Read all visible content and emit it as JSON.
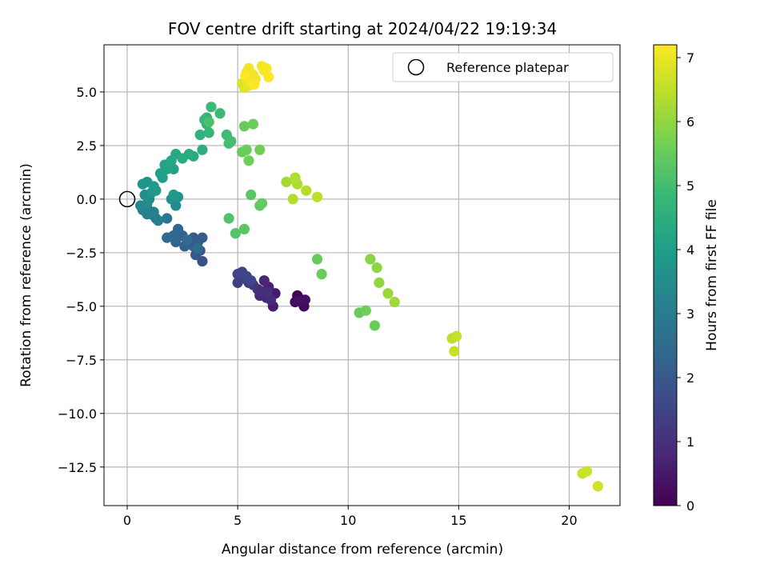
{
  "chart_data": {
    "type": "scatter",
    "title": "FOV centre drift starting at 2024/04/22 19:19:34",
    "xlabel": "Angular distance from reference (arcmin)",
    "ylabel": "Rotation from reference (arcmin)",
    "xlim": [
      -1.05,
      22.3
    ],
    "ylim": [
      -14.3,
      7.2
    ],
    "x_ticks": [
      0,
      5,
      10,
      15,
      20
    ],
    "x_tick_labels": [
      "0",
      "5",
      "10",
      "15",
      "20"
    ],
    "y_ticks": [
      5.0,
      2.5,
      0.0,
      -2.5,
      -5.0,
      -7.5,
      -10.0,
      -12.5
    ],
    "y_tick_labels": [
      "5.0",
      "2.5",
      "0.0",
      "−2.5",
      "−5.0",
      "−7.5",
      "−10.0",
      "−12.5"
    ],
    "grid": true,
    "legend": {
      "position": "top-right",
      "entries": [
        {
          "label": "Reference platepar",
          "marker": "open-circle",
          "color": "#000000"
        }
      ]
    },
    "reference_point": {
      "x": 0.0,
      "y": 0.0
    },
    "colorbar": {
      "label": "Hours from first FF file",
      "min": 0,
      "max": 7.2,
      "ticks": [
        0,
        1,
        2,
        3,
        4,
        5,
        6,
        7
      ],
      "tick_labels": [
        "0",
        "1",
        "2",
        "3",
        "4",
        "5",
        "6",
        "7"
      ],
      "colormap": "viridis",
      "stops": [
        "#440154",
        "#482878",
        "#3e4989",
        "#31688e",
        "#26828e",
        "#1f9e89",
        "#35b779",
        "#6ece58",
        "#b5de2b",
        "#fde725"
      ]
    },
    "points": [
      {
        "x": 7.7,
        "y": -4.5,
        "h": 0.05
      },
      {
        "x": 7.9,
        "y": -4.7,
        "h": 0.1
      },
      {
        "x": 8.0,
        "y": -5.0,
        "h": 0.15
      },
      {
        "x": 7.6,
        "y": -4.8,
        "h": 0.2
      },
      {
        "x": 8.05,
        "y": -4.7,
        "h": 0.25
      },
      {
        "x": 7.75,
        "y": -4.75,
        "h": 0.3
      },
      {
        "x": 6.7,
        "y": -4.4,
        "h": 0.5
      },
      {
        "x": 6.6,
        "y": -5.0,
        "h": 0.6
      },
      {
        "x": 6.4,
        "y": -4.1,
        "h": 0.65
      },
      {
        "x": 6.3,
        "y": -4.6,
        "h": 0.7
      },
      {
        "x": 6.2,
        "y": -3.8,
        "h": 0.75
      },
      {
        "x": 6.0,
        "y": -4.5,
        "h": 0.8
      },
      {
        "x": 6.5,
        "y": -4.7,
        "h": 0.85
      },
      {
        "x": 5.9,
        "y": -4.2,
        "h": 0.9
      },
      {
        "x": 6.1,
        "y": -4.3,
        "h": 0.95
      },
      {
        "x": 6.35,
        "y": -4.35,
        "h": 1.0
      },
      {
        "x": 5.7,
        "y": -4.0,
        "h": 1.1
      },
      {
        "x": 5.5,
        "y": -3.9,
        "h": 1.2
      },
      {
        "x": 5.3,
        "y": -3.7,
        "h": 1.3
      },
      {
        "x": 5.0,
        "y": -3.9,
        "h": 1.35
      },
      {
        "x": 5.2,
        "y": -3.4,
        "h": 1.4
      },
      {
        "x": 5.0,
        "y": -3.5,
        "h": 1.45
      },
      {
        "x": 5.4,
        "y": -3.6,
        "h": 1.5
      },
      {
        "x": 5.6,
        "y": -3.8,
        "h": 1.55
      },
      {
        "x": 3.4,
        "y": -2.9,
        "h": 1.8
      },
      {
        "x": 3.3,
        "y": -2.4,
        "h": 1.9
      },
      {
        "x": 3.1,
        "y": -2.6,
        "h": 1.95
      },
      {
        "x": 3.2,
        "y": -2.0,
        "h": 2.0
      },
      {
        "x": 3.0,
        "y": -1.8,
        "h": 2.05
      },
      {
        "x": 3.4,
        "y": -1.8,
        "h": 2.1
      },
      {
        "x": 3.0,
        "y": -2.2,
        "h": 2.15
      },
      {
        "x": 2.6,
        "y": -2.2,
        "h": 2.2
      },
      {
        "x": 2.5,
        "y": -1.7,
        "h": 2.25
      },
      {
        "x": 2.3,
        "y": -1.4,
        "h": 2.3
      },
      {
        "x": 2.2,
        "y": -2.0,
        "h": 2.35
      },
      {
        "x": 2.1,
        "y": -1.7,
        "h": 2.4
      },
      {
        "x": 1.8,
        "y": -1.8,
        "h": 2.45
      },
      {
        "x": 2.7,
        "y": -1.9,
        "h": 2.5
      },
      {
        "x": 3.2,
        "y": -2.3,
        "h": 2.55
      },
      {
        "x": 1.3,
        "y": -0.9,
        "h": 2.7
      },
      {
        "x": 1.1,
        "y": -0.7,
        "h": 2.8
      },
      {
        "x": 1.8,
        "y": -0.9,
        "h": 2.9
      },
      {
        "x": 0.9,
        "y": -0.4,
        "h": 3.0
      },
      {
        "x": 1.4,
        "y": -1.0,
        "h": 3.05
      },
      {
        "x": 0.7,
        "y": -0.5,
        "h": 3.1
      },
      {
        "x": 1.2,
        "y": -0.6,
        "h": 3.15
      },
      {
        "x": 0.9,
        "y": -0.7,
        "h": 3.2
      },
      {
        "x": 0.6,
        "y": -0.3,
        "h": 3.3
      },
      {
        "x": 1.0,
        "y": 0.0,
        "h": 3.4
      },
      {
        "x": 2.2,
        "y": -0.3,
        "h": 3.45
      },
      {
        "x": 0.8,
        "y": 0.2,
        "h": 3.5
      },
      {
        "x": 0.9,
        "y": -0.2,
        "h": 3.55
      },
      {
        "x": 2.0,
        "y": 0.0,
        "h": 3.6
      },
      {
        "x": 2.3,
        "y": 0.1,
        "h": 3.65
      },
      {
        "x": 1.1,
        "y": 0.3,
        "h": 3.7
      },
      {
        "x": 0.7,
        "y": 0.7,
        "h": 3.75
      },
      {
        "x": 0.9,
        "y": 0.8,
        "h": 3.8
      },
      {
        "x": 1.3,
        "y": 0.4,
        "h": 3.85
      },
      {
        "x": 2.1,
        "y": 0.2,
        "h": 3.9
      },
      {
        "x": 1.2,
        "y": 0.6,
        "h": 3.95
      },
      {
        "x": 1.6,
        "y": 1.0,
        "h": 4.0
      },
      {
        "x": 1.5,
        "y": 1.2,
        "h": 4.05
      },
      {
        "x": 2.1,
        "y": 1.4,
        "h": 4.1
      },
      {
        "x": 1.8,
        "y": 1.4,
        "h": 4.15
      },
      {
        "x": 1.7,
        "y": 1.6,
        "h": 4.2
      },
      {
        "x": 2.0,
        "y": 1.8,
        "h": 4.25
      },
      {
        "x": 2.2,
        "y": 2.1,
        "h": 4.3
      },
      {
        "x": 2.8,
        "y": 2.1,
        "h": 4.35
      },
      {
        "x": 3.0,
        "y": 2.0,
        "h": 4.4
      },
      {
        "x": 2.5,
        "y": 1.9,
        "h": 4.45
      },
      {
        "x": 3.4,
        "y": 2.3,
        "h": 4.5
      },
      {
        "x": 3.3,
        "y": 3.0,
        "h": 4.6
      },
      {
        "x": 3.6,
        "y": 3.5,
        "h": 4.65
      },
      {
        "x": 3.6,
        "y": 3.8,
        "h": 4.7
      },
      {
        "x": 3.7,
        "y": 3.1,
        "h": 4.75
      },
      {
        "x": 3.5,
        "y": 3.7,
        "h": 4.8
      },
      {
        "x": 3.8,
        "y": 4.3,
        "h": 4.85
      },
      {
        "x": 4.2,
        "y": 4.0,
        "h": 4.9
      },
      {
        "x": 4.5,
        "y": 3.0,
        "h": 4.95
      },
      {
        "x": 4.6,
        "y": 2.6,
        "h": 5.0
      },
      {
        "x": 4.7,
        "y": 2.7,
        "h": 5.05
      },
      {
        "x": 3.7,
        "y": 3.6,
        "h": 5.1
      },
      {
        "x": 4.6,
        "y": -0.9,
        "h": 5.2
      },
      {
        "x": 4.9,
        "y": -1.6,
        "h": 5.25
      },
      {
        "x": 5.3,
        "y": -1.4,
        "h": 5.3
      },
      {
        "x": 5.6,
        "y": 0.2,
        "h": 5.35
      },
      {
        "x": 6.0,
        "y": -0.3,
        "h": 5.4
      },
      {
        "x": 6.1,
        "y": -0.2,
        "h": 5.45
      },
      {
        "x": 5.2,
        "y": 2.2,
        "h": 5.5
      },
      {
        "x": 5.4,
        "y": 2.3,
        "h": 5.55
      },
      {
        "x": 5.5,
        "y": 1.8,
        "h": 5.6
      },
      {
        "x": 5.3,
        "y": 3.4,
        "h": 5.5
      },
      {
        "x": 5.7,
        "y": 3.5,
        "h": 5.55
      },
      {
        "x": 6.0,
        "y": 2.3,
        "h": 5.65
      },
      {
        "x": 8.6,
        "y": -2.8,
        "h": 5.5
      },
      {
        "x": 8.8,
        "y": -3.5,
        "h": 5.55
      },
      {
        "x": 10.5,
        "y": -5.3,
        "h": 5.5
      },
      {
        "x": 10.8,
        "y": -5.2,
        "h": 5.6
      },
      {
        "x": 11.2,
        "y": -5.9,
        "h": 5.55
      },
      {
        "x": 11.0,
        "y": -2.8,
        "h": 5.9
      },
      {
        "x": 11.3,
        "y": -3.2,
        "h": 5.95
      },
      {
        "x": 11.4,
        "y": -3.9,
        "h": 6.0
      },
      {
        "x": 11.8,
        "y": -4.4,
        "h": 6.1
      },
      {
        "x": 12.1,
        "y": -4.8,
        "h": 6.15
      },
      {
        "x": 7.2,
        "y": 0.8,
        "h": 6.2
      },
      {
        "x": 7.6,
        "y": 0.9,
        "h": 6.25
      },
      {
        "x": 7.7,
        "y": 0.7,
        "h": 6.3
      },
      {
        "x": 7.5,
        "y": 0.0,
        "h": 6.35
      },
      {
        "x": 8.1,
        "y": 0.4,
        "h": 6.4
      },
      {
        "x": 8.6,
        "y": 0.1,
        "h": 6.45
      },
      {
        "x": 7.6,
        "y": 1.0,
        "h": 6.35
      },
      {
        "x": 14.7,
        "y": -6.5,
        "h": 6.5
      },
      {
        "x": 14.9,
        "y": -6.4,
        "h": 6.55
      },
      {
        "x": 14.8,
        "y": -7.1,
        "h": 6.6
      },
      {
        "x": 20.6,
        "y": -12.8,
        "h": 6.6
      },
      {
        "x": 20.8,
        "y": -12.7,
        "h": 6.65
      },
      {
        "x": 21.3,
        "y": -13.4,
        "h": 6.7
      },
      {
        "x": 5.2,
        "y": 5.4,
        "h": 6.8
      },
      {
        "x": 5.3,
        "y": 5.2,
        "h": 6.85
      },
      {
        "x": 5.4,
        "y": 5.6,
        "h": 6.9
      },
      {
        "x": 5.5,
        "y": 5.3,
        "h": 6.95
      },
      {
        "x": 5.4,
        "y": 5.9,
        "h": 7.0
      },
      {
        "x": 5.5,
        "y": 6.1,
        "h": 7.02
      },
      {
        "x": 5.7,
        "y": 5.8,
        "h": 7.05
      },
      {
        "x": 5.6,
        "y": 5.5,
        "h": 7.08
      },
      {
        "x": 5.8,
        "y": 5.6,
        "h": 7.1
      },
      {
        "x": 6.1,
        "y": 6.2,
        "h": 7.12
      },
      {
        "x": 6.2,
        "y": 6.0,
        "h": 7.14
      },
      {
        "x": 6.3,
        "y": 6.1,
        "h": 7.16
      },
      {
        "x": 6.4,
        "y": 5.7,
        "h": 7.18
      },
      {
        "x": 5.35,
        "y": 5.75,
        "h": 7.19
      },
      {
        "x": 5.75,
        "y": 5.35,
        "h": 7.2
      }
    ]
  }
}
